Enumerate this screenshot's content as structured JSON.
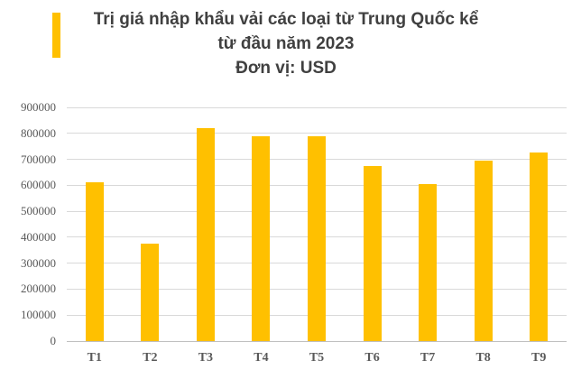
{
  "title": {
    "line1": "Trị giá nhập khẩu vải các loại từ Trung Quốc kể",
    "line2": "từ đầu năm 2023",
    "unit": "Đơn vị: USD"
  },
  "colors": {
    "bar": "#FFC000",
    "accent_bar": "#FFC000",
    "title_text": "#404040",
    "axis_text": "#595959",
    "gridline": "#D9D9D9",
    "axis_line": "#BFBFBF",
    "background": "#FFFFFF"
  },
  "chart_data": {
    "type": "bar",
    "title": "Trị giá nhập khẩu vải các loại từ Trung Quốc kể từ đầu năm 2023",
    "subtitle": "Đơn vị: USD",
    "categories": [
      "T1",
      "T2",
      "T3",
      "T4",
      "T5",
      "T6",
      "T7",
      "T8",
      "T9"
    ],
    "values": [
      610000,
      375000,
      820000,
      790000,
      790000,
      675000,
      605000,
      695000,
      725000
    ],
    "xlabel": "",
    "ylabel": "",
    "ylim": [
      0,
      900000
    ],
    "ytick_step": 100000,
    "ytick_labels": [
      "0",
      "100000",
      "200000",
      "300000",
      "400000",
      "500000",
      "600000",
      "700000",
      "800000",
      "900000"
    ],
    "grid": true,
    "legend": false
  }
}
